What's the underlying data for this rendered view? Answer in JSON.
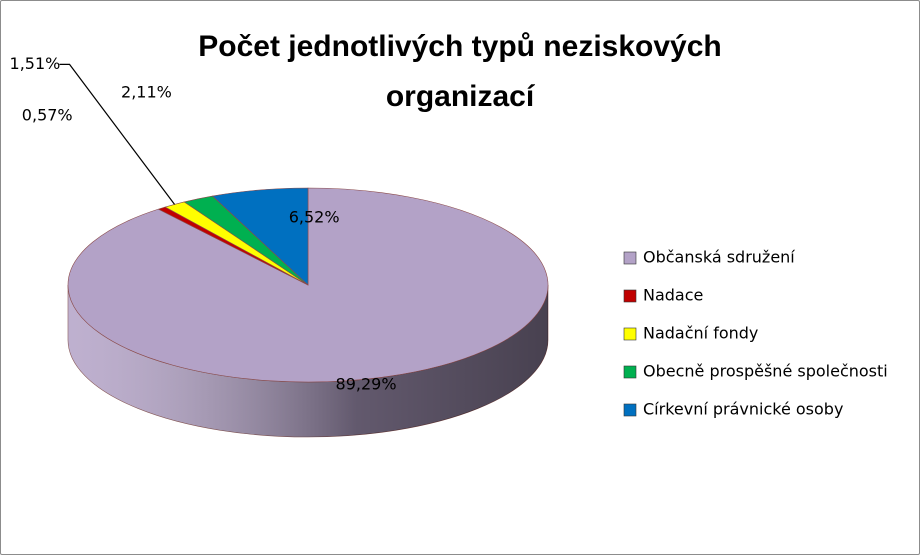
{
  "chart_data": {
    "type": "pie",
    "title": "Počet jednotlivých typů neziskových organizací",
    "categories": [
      "Občanská sdružení",
      "Nadace",
      "Nadační fondy",
      "Obecně prospěšné společnosti",
      "Církevní právnické osoby"
    ],
    "values": [
      89.29,
      0.57,
      1.51,
      2.11,
      6.52
    ],
    "value_labels": [
      "89,29%",
      "0,57%",
      "1,51%",
      "2,11%",
      "6,52%"
    ],
    "colors": [
      "#b3a2c7",
      "#c00000",
      "#ffff00",
      "#00b050",
      "#0070c0"
    ],
    "legend": "right"
  }
}
